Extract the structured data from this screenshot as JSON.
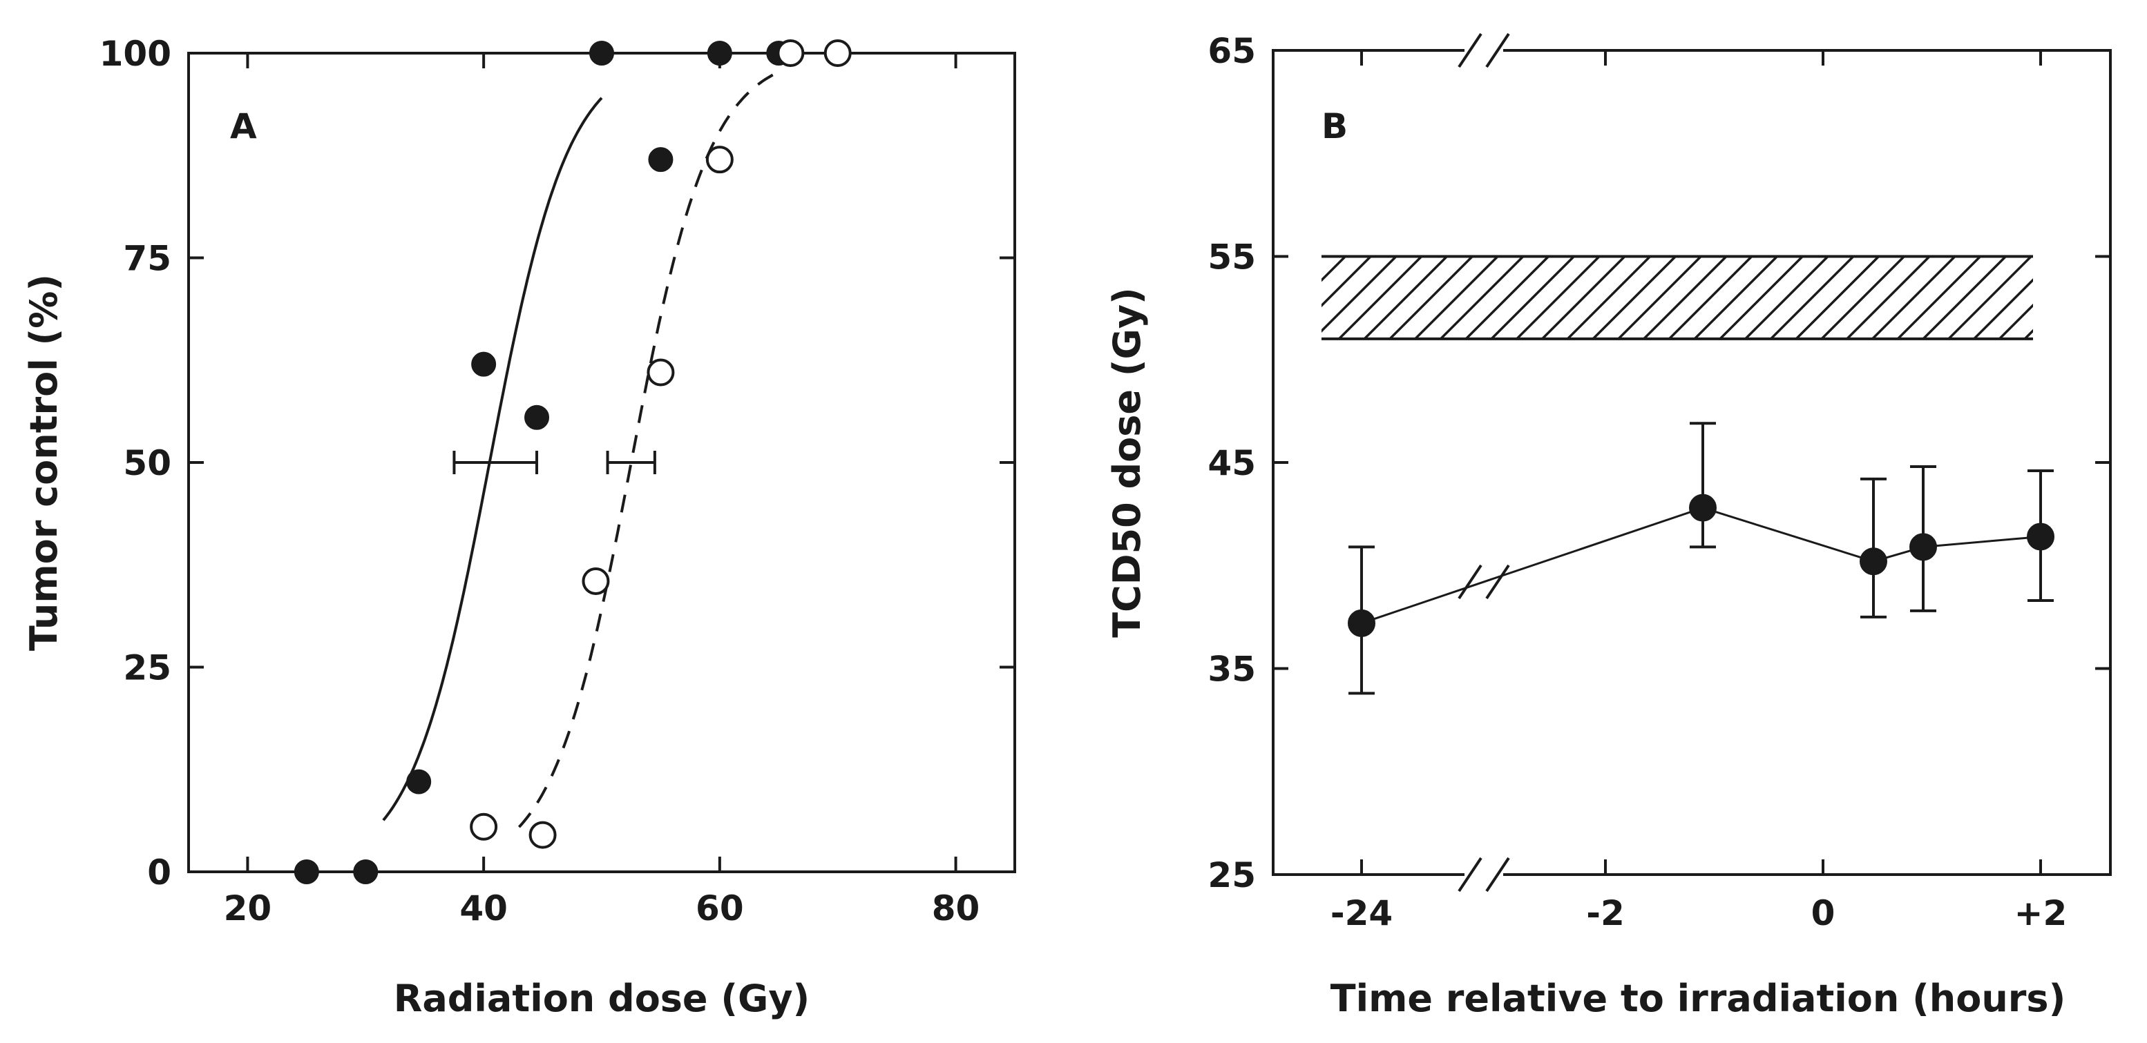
{
  "chart_data": [
    {
      "type": "scatter",
      "panel_label": "A",
      "xlabel": "Radiation dose (Gy)",
      "ylabel": "Tumor control (%)",
      "xlim": [
        15,
        85
      ],
      "ylim": [
        0,
        100
      ],
      "xticks": [
        20,
        40,
        60,
        80
      ],
      "yticks": [
        0,
        25,
        50,
        75,
        100
      ],
      "xtick_labels": [
        "20",
        "40",
        "60",
        "80"
      ],
      "ytick_labels": [
        "0",
        "25",
        "50",
        "75",
        "100"
      ],
      "series": [
        {
          "name": "filled",
          "marker": "filled-circle",
          "points": [
            [
              25,
              0
            ],
            [
              30,
              0
            ],
            [
              34.5,
              11
            ],
            [
              40,
              62
            ],
            [
              44.5,
              55.5
            ],
            [
              50,
              100
            ],
            [
              55,
              87
            ],
            [
              60,
              100
            ],
            [
              65,
              100
            ]
          ],
          "fit_curve": {
            "style": "solid",
            "x50": 40.5,
            "slope": 0.3,
            "x_range": [
              31.5,
              50
            ]
          },
          "tcd50_errorbar": {
            "center": 40.5,
            "low": 37.5,
            "high": 44.5,
            "y": 50
          }
        },
        {
          "name": "open",
          "marker": "open-circle",
          "points": [
            [
              40,
              5.5
            ],
            [
              45,
              4.5
            ],
            [
              49.5,
              35.5
            ],
            [
              55,
              61
            ],
            [
              60,
              87
            ],
            [
              66,
              100
            ],
            [
              70,
              100
            ]
          ],
          "fit_curve": {
            "style": "dashed",
            "x50": 52.5,
            "slope": 0.3,
            "x_range": [
              43,
              64.5
            ]
          },
          "tcd50_errorbar": {
            "center": 52.5,
            "low": 50.5,
            "high": 54.5,
            "y": 50
          }
        }
      ]
    },
    {
      "type": "line",
      "panel_label": "B",
      "xlabel": "Time relative to irradiation (hours)",
      "ylabel": "TCD50 dose (Gy)",
      "ylim": [
        25,
        65
      ],
      "yticks": [
        25,
        35,
        45,
        55,
        65
      ],
      "ytick_labels": [
        "25",
        "35",
        "45",
        "55",
        "65"
      ],
      "x_axis_break": true,
      "x": [
        "-24",
        "-1",
        "0.5",
        "1",
        "2"
      ],
      "xtick_labels": [
        "-24",
        "-2",
        "0",
        "+2"
      ],
      "series": [
        {
          "name": "TCD50",
          "marker": "filled-circle",
          "values": [
            37.2,
            42.8,
            40.2,
            40.9,
            41.4
          ],
          "error_low": [
            33.8,
            40.9,
            37.5,
            37.8,
            38.3
          ],
          "error_high": [
            40.9,
            46.9,
            44.2,
            44.8,
            44.6
          ]
        }
      ],
      "reference_band": {
        "low": 51,
        "high": 55,
        "pattern": "diagonal-hatch"
      }
    }
  ]
}
